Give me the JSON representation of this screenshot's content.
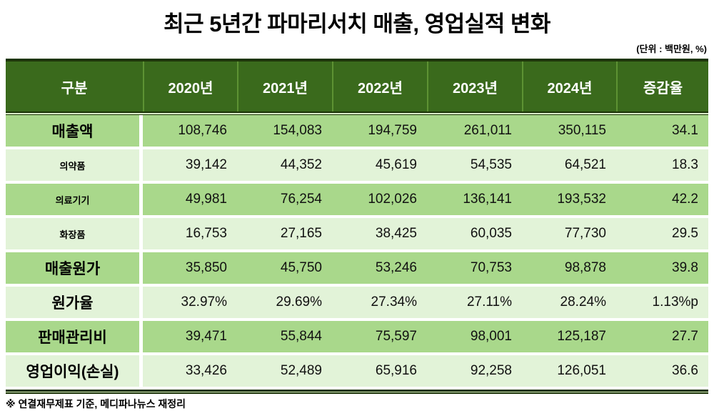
{
  "colors": {
    "header_bg": "#3a6a1c",
    "header_sep": "#5d9233",
    "row_medium": "#a9d88b",
    "row_light": "#e2f3d8",
    "border_dark": "#1d3508",
    "sep_light": "#d9ecc8",
    "header_text": "#ffffff",
    "text_dark": "#111111"
  },
  "chart_data": {
    "type": "table",
    "title": "최근 5년간 파마리서치 매출, 영업실적 변화",
    "unit_note": "(단위 : 백만원, %)",
    "source_note": "※ 연결재무제표 기준, 메디파나뉴스 재정리",
    "columns": [
      "구분",
      "2020년",
      "2021년",
      "2022년",
      "2023년",
      "2024년",
      "증감율"
    ],
    "rows": [
      {
        "label": "매출액",
        "level": "main",
        "shade": "medium",
        "values": [
          "108,746",
          "154,083",
          "194,759",
          "261,011",
          "350,115",
          "34.1"
        ]
      },
      {
        "label": "의약품",
        "level": "sub",
        "shade": "light",
        "values": [
          "39,142",
          "44,352",
          "45,619",
          "54,535",
          "64,521",
          "18.3"
        ]
      },
      {
        "label": "의료기기",
        "level": "sub",
        "shade": "medium",
        "values": [
          "49,981",
          "76,254",
          "102,026",
          "136,141",
          "193,532",
          "42.2"
        ]
      },
      {
        "label": "화장품",
        "level": "sub",
        "shade": "light",
        "values": [
          "16,753",
          "27,165",
          "38,425",
          "60,035",
          "77,730",
          "29.5"
        ]
      },
      {
        "label": "매출원가",
        "level": "main",
        "shade": "medium",
        "values": [
          "35,850",
          "45,750",
          "53,246",
          "70,753",
          "98,878",
          "39.8"
        ]
      },
      {
        "label": "원가율",
        "level": "main",
        "shade": "light",
        "values": [
          "32.97%",
          "29.69%",
          "27.34%",
          "27.11%",
          "28.24%",
          "1.13%p"
        ]
      },
      {
        "label": "판매관리비",
        "level": "main",
        "shade": "medium",
        "values": [
          "39,471",
          "55,844",
          "75,597",
          "98,001",
          "125,187",
          "27.7"
        ]
      },
      {
        "label": "영업이익(손실)",
        "level": "main",
        "shade": "light",
        "values": [
          "33,426",
          "52,489",
          "65,916",
          "92,258",
          "126,051",
          "36.6"
        ]
      }
    ]
  }
}
